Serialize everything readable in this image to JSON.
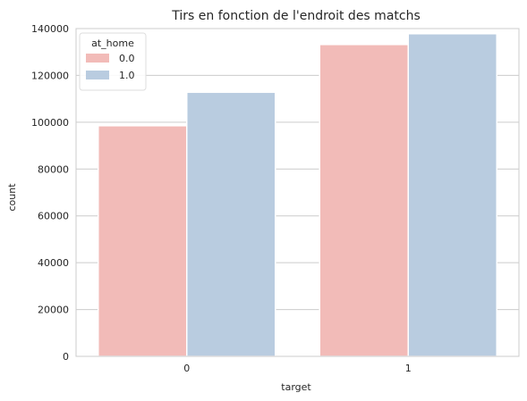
{
  "chart_data": {
    "type": "bar",
    "title": "Tirs en fonction de l'endroit des matchs",
    "xlabel": "target",
    "ylabel": "count",
    "categories": [
      "0",
      "1"
    ],
    "series": [
      {
        "name": "0.0",
        "color": "#f2bbb8",
        "values": [
          98500,
          133200
        ]
      },
      {
        "name": "1.0",
        "color": "#b9cce0",
        "values": [
          112800,
          137800
        ]
      }
    ],
    "ylim": [
      0,
      140000
    ],
    "yticks": [
      0,
      20000,
      40000,
      60000,
      80000,
      100000,
      120000,
      140000
    ],
    "grid": true,
    "legend": {
      "title": "at_home",
      "placement": "top-left"
    }
  }
}
